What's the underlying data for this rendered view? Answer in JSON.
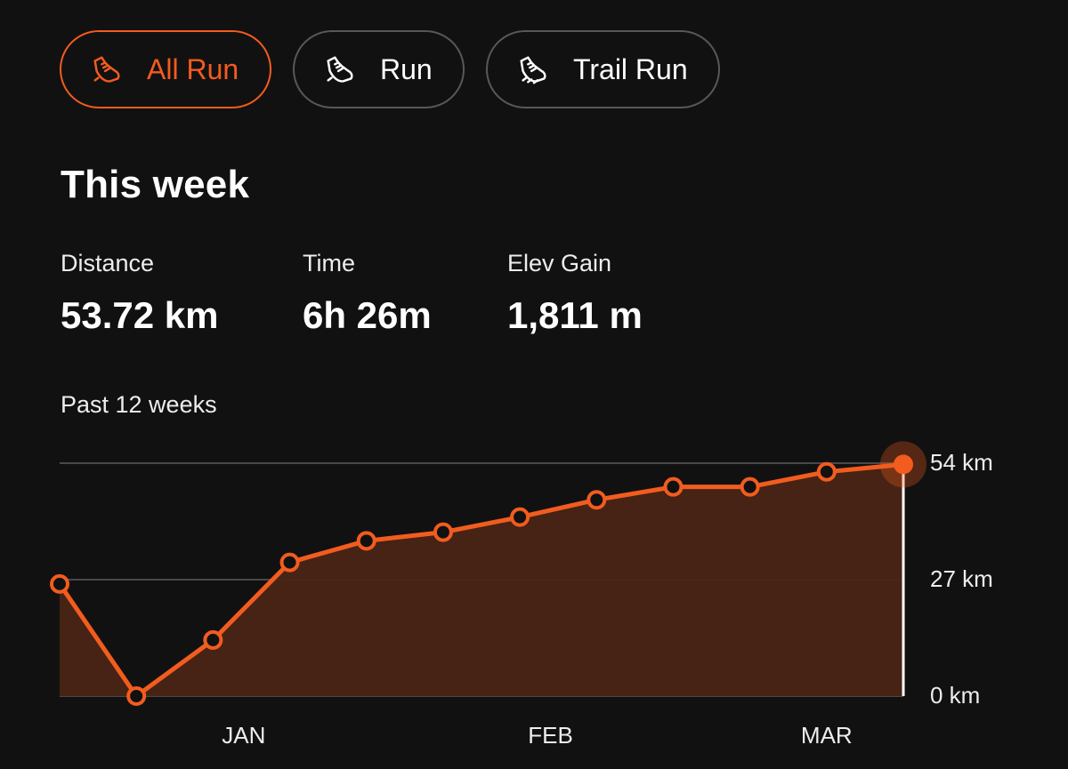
{
  "filters": [
    {
      "label": "All Run",
      "icon": "running-shoe-icon",
      "active": true
    },
    {
      "label": "Run",
      "icon": "running-shoe-icon",
      "active": false
    },
    {
      "label": "Trail Run",
      "icon": "trail-shoe-icon",
      "active": false
    }
  ],
  "this_week": {
    "title": "This week",
    "stats": [
      {
        "label": "Distance",
        "value": "53.72 km"
      },
      {
        "label": "Time",
        "value": "6h 26m"
      },
      {
        "label": "Elev Gain",
        "value": "1,811 m"
      }
    ]
  },
  "colors": {
    "accent": "#f25c1f",
    "fill": "#4a2515",
    "background": "#121111",
    "grid": "#4a4848"
  },
  "chart_data": {
    "type": "area",
    "title": "Past 12 weeks",
    "y_unit": "km",
    "ylim": [
      0,
      54
    ],
    "y_ticks": [
      "0 km",
      "27 km",
      "54 km"
    ],
    "x_ticks": [
      {
        "label": "JAN",
        "index": 2.4
      },
      {
        "label": "FEB",
        "index": 6.4
      },
      {
        "label": "MAR",
        "index": 10.0
      }
    ],
    "values": [
      26.0,
      0.0,
      13.0,
      31.0,
      36.0,
      38.0,
      41.5,
      45.5,
      48.5,
      48.5,
      52.0,
      53.72
    ],
    "highlight_index": 11,
    "grid": true
  }
}
